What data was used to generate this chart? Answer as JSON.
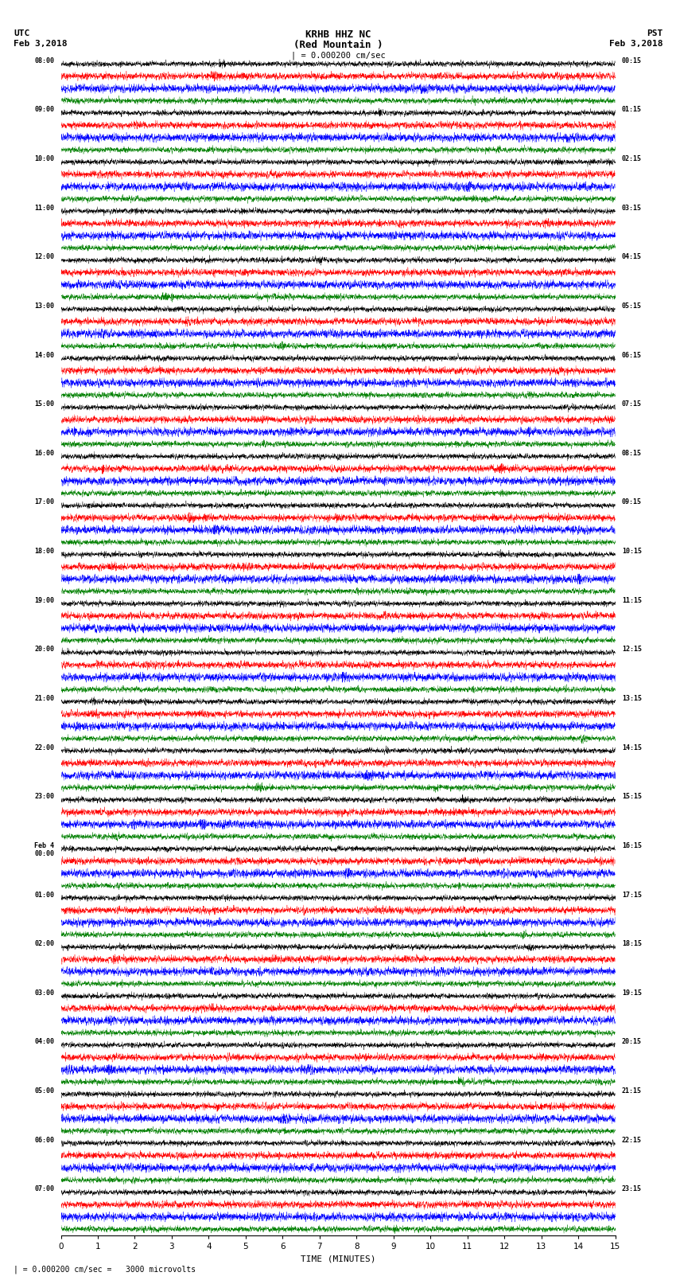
{
  "title_line1": "KRHB HHZ NC",
  "title_line2": "(Red Mountain )",
  "scale_text": "| = 0.000200 cm/sec",
  "left_label": "UTC",
  "left_date": "Feb 3,2018",
  "right_label": "PST",
  "right_date": "Feb 3,2018",
  "xlabel": "TIME (MINUTES)",
  "bottom_note": "| = 0.000200 cm/sec =   3000 microvolts",
  "xlim": [
    0,
    15
  ],
  "trace_colors": [
    "black",
    "red",
    "blue",
    "green"
  ],
  "utc_major_times": [
    "08:00",
    "09:00",
    "10:00",
    "11:00",
    "12:00",
    "13:00",
    "14:00",
    "15:00",
    "16:00",
    "17:00",
    "18:00",
    "19:00",
    "20:00",
    "21:00",
    "22:00",
    "23:00",
    "Feb 4\n00:00",
    "01:00",
    "02:00",
    "03:00",
    "04:00",
    "05:00",
    "06:00",
    "07:00"
  ],
  "pst_major_times": [
    "00:15",
    "01:15",
    "02:15",
    "03:15",
    "04:15",
    "05:15",
    "06:15",
    "07:15",
    "08:15",
    "09:15",
    "10:15",
    "11:15",
    "12:15",
    "13:15",
    "14:15",
    "15:15",
    "16:15",
    "17:15",
    "18:15",
    "19:15",
    "20:15",
    "21:15",
    "22:15",
    "23:15"
  ],
  "n_groups": 24,
  "traces_per_group": 4,
  "bg_color": "#ffffff",
  "xticks": [
    0,
    1,
    2,
    3,
    4,
    5,
    6,
    7,
    8,
    9,
    10,
    11,
    12,
    13,
    14,
    15
  ]
}
